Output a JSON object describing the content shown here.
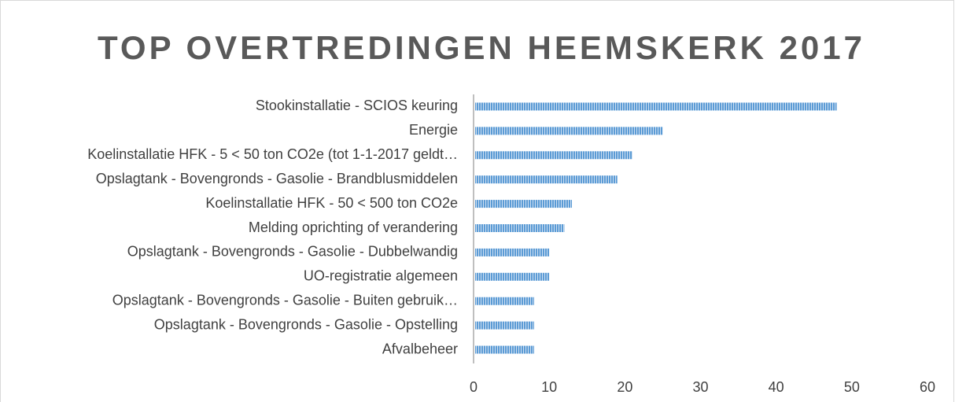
{
  "chart_data": {
    "type": "bar",
    "orientation": "horizontal",
    "title": "TOP OVERTREDINGEN HEEMSKERK 2017",
    "categories": [
      "Stookinstallatie - SCIOS keuring",
      "Energie",
      "Koelinstallatie HFK - 5 < 50 ton CO2e (tot 1-1-2017 geldt…",
      "Opslagtank - Bovengronds - Gasolie - Brandblusmiddelen",
      "Koelinstallatie HFK - 50 < 500 ton CO2e",
      "Melding oprichting of verandering",
      "Opslagtank - Bovengronds - Gasolie - Dubbelwandig",
      "UO-registratie algemeen",
      "Opslagtank - Bovengronds - Gasolie - Buiten gebruik…",
      "Opslagtank - Bovengronds - Gasolie - Opstelling",
      "Afvalbeheer"
    ],
    "values": [
      48,
      25,
      21,
      19,
      13,
      12,
      10,
      10,
      8,
      8,
      8
    ],
    "color": "#5b9bd5",
    "xlim": [
      0,
      60
    ],
    "xticks": [
      0,
      10,
      20,
      30,
      40,
      50,
      60
    ],
    "grid": false
  }
}
